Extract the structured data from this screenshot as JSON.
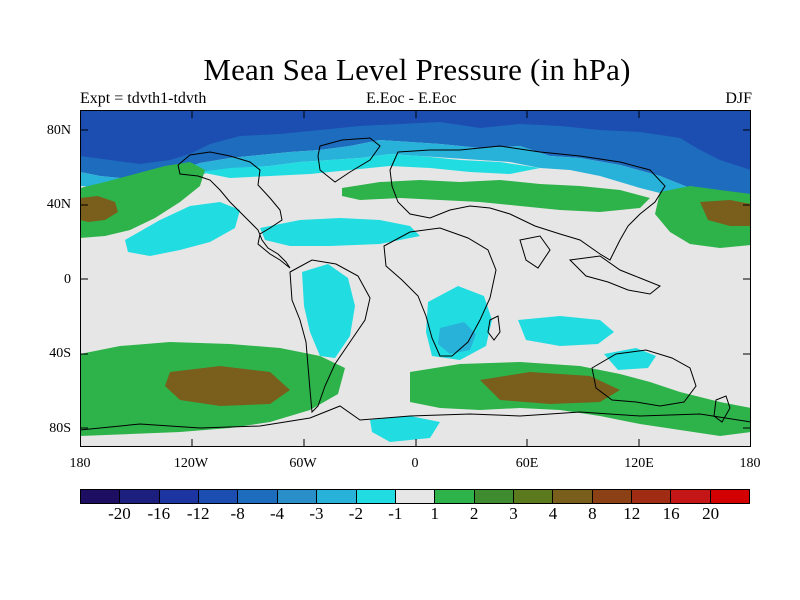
{
  "title": "Mean Sea Level Pressure (in hPa)",
  "left_subtitle": "Expt = tdvth1-tdvth",
  "center_subtitle": "E.Eoc - E.Eoc",
  "right_subtitle": "DJF",
  "x_ticks": [
    "180",
    "120W",
    "60W",
    "0",
    "60E",
    "120E",
    "180"
  ],
  "y_ticks": [
    "80N",
    "40N",
    "0",
    "40S",
    "80S"
  ],
  "colorbar": {
    "labels": [
      "-20",
      "-16",
      "-12",
      "-8",
      "-4",
      "-3",
      "-2",
      "-1",
      "1",
      "2",
      "3",
      "4",
      "8",
      "12",
      "16",
      "20"
    ],
    "colors": [
      "#1d0e62",
      "#1c1f7d",
      "#1d35a0",
      "#1c4eb2",
      "#1e6cbe",
      "#2a8ec8",
      "#28b2d9",
      "#21dde1",
      "#e6e6e6",
      "#2db34a",
      "#3f8c30",
      "#5b7a1d",
      "#7a5e1c",
      "#8c4016",
      "#a02c14",
      "#c41616",
      "#d20000"
    ]
  },
  "palette": {
    "neutral": "#e6e6e6",
    "cyan": "#21dde1",
    "light_blue": "#28b2d9",
    "mid_blue": "#1e6cbe",
    "dark_blue": "#1c4eb2",
    "green": "#2db34a",
    "olive": "#5b7a1d",
    "brown": "#7a5e1c"
  }
}
